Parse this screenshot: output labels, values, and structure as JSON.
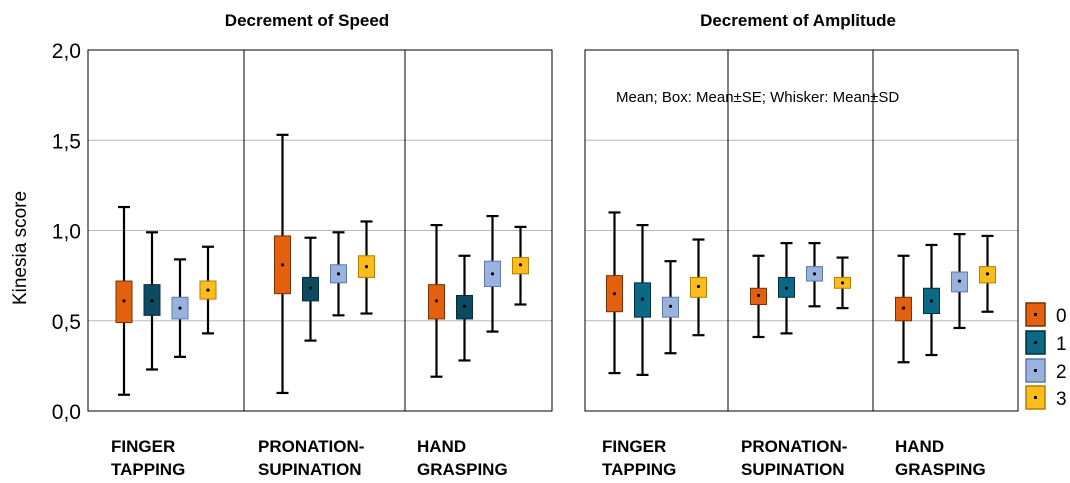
{
  "chart_data": {
    "type": "box",
    "ylabel": "Kinesia score",
    "ylim": [
      0.0,
      2.0
    ],
    "yticks": [
      "0,0",
      "0,5",
      "1,0",
      "1,5",
      "2,0"
    ],
    "annotation": "Mean; Box: Mean±SE; Whisker: Mean±SD",
    "legend": {
      "position": "right",
      "entries": [
        {
          "label": "0",
          "color": "#e2600e"
        },
        {
          "label": "1",
          "color": "#0a6a86"
        },
        {
          "label": "2",
          "color": "#9ab3de"
        },
        {
          "label": "3",
          "color": "#fbbc1c"
        }
      ]
    },
    "panels": [
      {
        "title": "Decrement of Speed",
        "dark_group1": true,
        "categories": [
          {
            "label_line1": "FINGER",
            "label_line2": "TAPPING",
            "groups": [
              {
                "mean": 0.61,
                "box_low": 0.49,
                "box_high": 0.72,
                "wh_low": 0.09,
                "wh_high": 1.13
              },
              {
                "mean": 0.61,
                "box_low": 0.53,
                "box_high": 0.7,
                "wh_low": 0.23,
                "wh_high": 0.99
              },
              {
                "mean": 0.57,
                "box_low": 0.51,
                "box_high": 0.63,
                "wh_low": 0.3,
                "wh_high": 0.84
              },
              {
                "mean": 0.67,
                "box_low": 0.62,
                "box_high": 0.72,
                "wh_low": 0.43,
                "wh_high": 0.91
              }
            ]
          },
          {
            "label_line1": "PRONATION-",
            "label_line2": "SUPINATION",
            "groups": [
              {
                "mean": 0.81,
                "box_low": 0.65,
                "box_high": 0.97,
                "wh_low": 0.1,
                "wh_high": 1.53
              },
              {
                "mean": 0.68,
                "box_low": 0.61,
                "box_high": 0.74,
                "wh_low": 0.39,
                "wh_high": 0.96
              },
              {
                "mean": 0.76,
                "box_low": 0.71,
                "box_high": 0.81,
                "wh_low": 0.53,
                "wh_high": 0.99
              },
              {
                "mean": 0.8,
                "box_low": 0.74,
                "box_high": 0.86,
                "wh_low": 0.54,
                "wh_high": 1.05
              }
            ]
          },
          {
            "label_line1": "HAND",
            "label_line2": "GRASPING",
            "groups": [
              {
                "mean": 0.61,
                "box_low": 0.51,
                "box_high": 0.7,
                "wh_low": 0.19,
                "wh_high": 1.03
              },
              {
                "mean": 0.58,
                "box_low": 0.51,
                "box_high": 0.64,
                "wh_low": 0.28,
                "wh_high": 0.86
              },
              {
                "mean": 0.76,
                "box_low": 0.69,
                "box_high": 0.83,
                "wh_low": 0.44,
                "wh_high": 1.08
              },
              {
                "mean": 0.81,
                "box_low": 0.76,
                "box_high": 0.85,
                "wh_low": 0.59,
                "wh_high": 1.02
              }
            ]
          }
        ]
      },
      {
        "title": "Decrement of Amplitude",
        "dark_group1": false,
        "categories": [
          {
            "label_line1": "FINGER",
            "label_line2": "TAPPING",
            "groups": [
              {
                "mean": 0.65,
                "box_low": 0.55,
                "box_high": 0.75,
                "wh_low": 0.21,
                "wh_high": 1.1
              },
              {
                "mean": 0.62,
                "box_low": 0.52,
                "box_high": 0.71,
                "wh_low": 0.2,
                "wh_high": 1.03
              },
              {
                "mean": 0.58,
                "box_low": 0.52,
                "box_high": 0.63,
                "wh_low": 0.32,
                "wh_high": 0.83
              },
              {
                "mean": 0.69,
                "box_low": 0.63,
                "box_high": 0.74,
                "wh_low": 0.42,
                "wh_high": 0.95
              }
            ]
          },
          {
            "label_line1": "PRONATION-",
            "label_line2": "SUPINATION",
            "groups": [
              {
                "mean": 0.64,
                "box_low": 0.59,
                "box_high": 0.68,
                "wh_low": 0.41,
                "wh_high": 0.86
              },
              {
                "mean": 0.68,
                "box_low": 0.63,
                "box_high": 0.74,
                "wh_low": 0.43,
                "wh_high": 0.93
              },
              {
                "mean": 0.76,
                "box_low": 0.72,
                "box_high": 0.8,
                "wh_low": 0.58,
                "wh_high": 0.93
              },
              {
                "mean": 0.71,
                "box_low": 0.68,
                "box_high": 0.74,
                "wh_low": 0.57,
                "wh_high": 0.85
              }
            ]
          },
          {
            "label_line1": "HAND",
            "label_line2": "GRASPING",
            "groups": [
              {
                "mean": 0.57,
                "box_low": 0.5,
                "box_high": 0.63,
                "wh_low": 0.27,
                "wh_high": 0.86
              },
              {
                "mean": 0.61,
                "box_low": 0.54,
                "box_high": 0.68,
                "wh_low": 0.31,
                "wh_high": 0.92
              },
              {
                "mean": 0.72,
                "box_low": 0.66,
                "box_high": 0.77,
                "wh_low": 0.46,
                "wh_high": 0.98
              },
              {
                "mean": 0.76,
                "box_low": 0.71,
                "box_high": 0.8,
                "wh_low": 0.55,
                "wh_high": 0.97
              }
            ]
          }
        ]
      }
    ]
  }
}
